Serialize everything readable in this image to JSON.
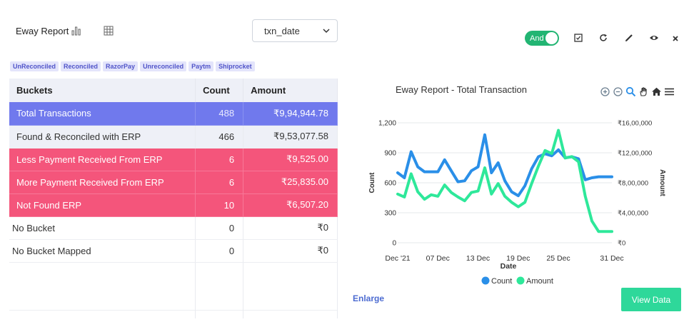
{
  "header": {
    "title": "Eway Report",
    "select_value": "txn_date",
    "toggle_label": "And"
  },
  "tags": [
    "UnReconciled",
    "Reconciled",
    "RazorPay",
    "Unreconciled",
    "Paytm",
    "Shiprocket"
  ],
  "table": {
    "headers": {
      "bucket": "Buckets",
      "count": "Count",
      "amount": "Amount"
    },
    "rows": [
      {
        "bucket": "Total  Transactions",
        "count": "488",
        "amount": "₹9,94,944.78"
      },
      {
        "bucket": "Found & Reconciled with ERP",
        "count": "466",
        "amount": "₹9,53,077.58"
      },
      {
        "bucket": "Less Payment Received From ERP",
        "count": "6",
        "amount": "₹9,525.00"
      },
      {
        "bucket": "More Payment Received From ERP",
        "count": "6",
        "amount": "₹25,835.00"
      },
      {
        "bucket": "Not Found ERP",
        "count": "10",
        "amount": "₹6,507.20"
      },
      {
        "bucket": "No Bucket",
        "count": "0",
        "amount": "₹0"
      },
      {
        "bucket": "No Bucket Mapped",
        "count": "0",
        "amount": "₹0"
      }
    ]
  },
  "colors": {
    "accent_blue": "#7079ed",
    "alert_red": "#f4557b",
    "toggle_green": "#22b573",
    "count_series": "#2a8fe8",
    "amount_series": "#2ee89a"
  },
  "chart": {
    "title": "Eway Report - Total Transaction",
    "enlarge_label": "Enlarge",
    "view_data_label": "View Data"
  },
  "chart_data": {
    "type": "line",
    "title": "Eway Report - Total Transaction",
    "xlabel": "Date",
    "ylabel": "Count",
    "y2label": "Amount",
    "x_ticks": [
      "Dec '21",
      "07 Dec",
      "13 Dec",
      "19 Dec",
      "25 Dec",
      "31 Dec"
    ],
    "y_ticks": [
      "0",
      "300",
      "600",
      "900",
      "1,200"
    ],
    "y2_ticks": [
      "₹0",
      "₹4,00,000",
      "₹8,00,000",
      "₹12,00,000",
      "₹16,00,000"
    ],
    "ylim": [
      0,
      1200
    ],
    "y2lim": [
      0,
      1600000
    ],
    "x": [
      1,
      2,
      3,
      4,
      5,
      6,
      7,
      8,
      9,
      10,
      11,
      12,
      13,
      14,
      15,
      16,
      17,
      18,
      19,
      20,
      21,
      22,
      23,
      24,
      25,
      26,
      27,
      28,
      29,
      30,
      31,
      32,
      33
    ],
    "series": [
      {
        "name": "Count",
        "axis": "left",
        "values": [
          700,
          650,
          910,
          760,
          710,
          710,
          710,
          830,
          720,
          610,
          620,
          720,
          760,
          1080,
          700,
          800,
          620,
          510,
          470,
          570,
          740,
          860,
          890,
          870,
          930,
          850,
          860,
          840,
          630,
          650,
          660,
          660,
          660
        ]
      },
      {
        "name": "Amount",
        "axis": "right",
        "values": [
          650000,
          610000,
          920000,
          680000,
          580000,
          640000,
          620000,
          770000,
          670000,
          610000,
          560000,
          670000,
          690000,
          1000000,
          650000,
          790000,
          620000,
          540000,
          480000,
          540000,
          790000,
          1020000,
          1230000,
          1190000,
          1500000,
          1130000,
          1150000,
          1080000,
          620000,
          290000,
          150000,
          150000,
          150000
        ]
      }
    ],
    "legend": [
      "Count",
      "Amount"
    ],
    "legend_position": "bottom",
    "grid": true
  }
}
